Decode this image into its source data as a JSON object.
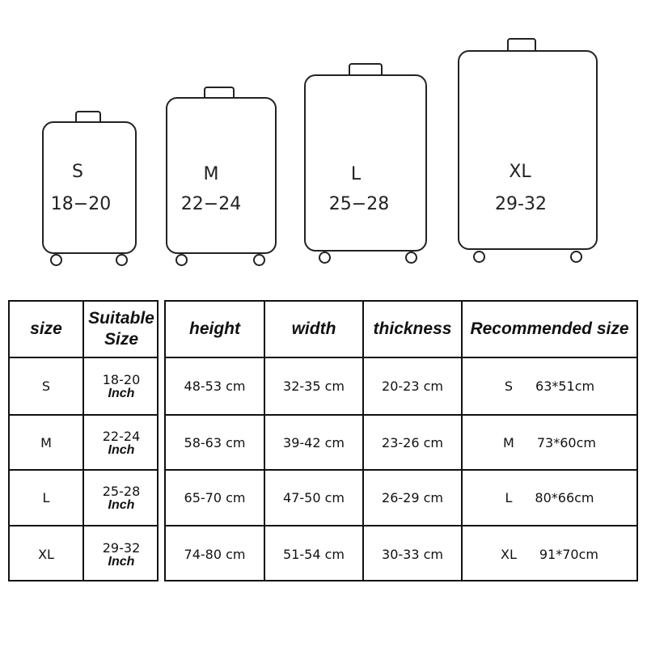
{
  "suitcases": [
    {
      "size": "S",
      "range": "18−20"
    },
    {
      "size": "M",
      "range": "22−24"
    },
    {
      "size": "L",
      "range": "25−28"
    },
    {
      "size": "XL",
      "range": "29-32"
    }
  ],
  "left_table": {
    "headers": [
      "size",
      "Suitable Size"
    ],
    "rows": [
      {
        "size": "S",
        "suitable": "18-20",
        "unit": "Inch"
      },
      {
        "size": "M",
        "suitable": "22-24",
        "unit": "Inch"
      },
      {
        "size": "L",
        "suitable": "25-28",
        "unit": "Inch"
      },
      {
        "size": "XL",
        "suitable": "29-32",
        "unit": "Inch"
      }
    ]
  },
  "right_table": {
    "headers": [
      "height",
      "width",
      "thickness",
      "Recommended size"
    ],
    "rows": [
      {
        "height": "48-53 cm",
        "width": "32-35 cm",
        "thickness": "20-23 cm",
        "rec_size": "S",
        "rec_dim": "63*51cm"
      },
      {
        "height": "58-63 cm",
        "width": "39-42 cm",
        "thickness": "23-26 cm",
        "rec_size": "M",
        "rec_dim": "73*60cm"
      },
      {
        "height": "65-70 cm",
        "width": "47-50 cm",
        "thickness": "26-29 cm",
        "rec_size": "L",
        "rec_dim": "80*66cm"
      },
      {
        "height": "74-80 cm",
        "width": "51-54 cm",
        "thickness": "30-33 cm",
        "rec_size": "XL",
        "rec_dim": "91*70cm"
      }
    ]
  }
}
